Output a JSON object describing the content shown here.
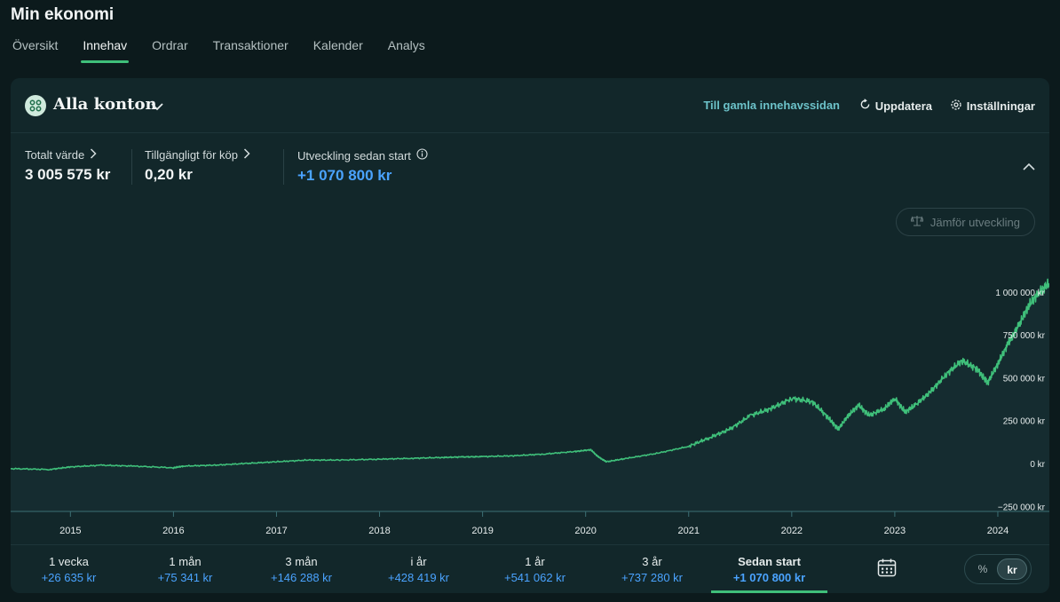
{
  "page": {
    "title": "Min ekonomi"
  },
  "nav": {
    "tabs": [
      {
        "label": "Översikt",
        "active": false
      },
      {
        "label": "Innehav",
        "active": true
      },
      {
        "label": "Ordrar",
        "active": false
      },
      {
        "label": "Transaktioner",
        "active": false
      },
      {
        "label": "Kalender",
        "active": false
      },
      {
        "label": "Analys",
        "active": false
      }
    ]
  },
  "header": {
    "account_title": "Alla konton",
    "old_page_link": "Till gamla innehavssidan",
    "update_label": "Uppdatera",
    "settings_label": "Inställningar"
  },
  "stats": {
    "total": {
      "label": "Totalt värde",
      "value": "3 005 575 kr"
    },
    "available": {
      "label": "Tillgängligt för köp",
      "value": "0,20 kr"
    },
    "development": {
      "label": "Utveckling sedan start",
      "value": "+1 070 800 kr"
    }
  },
  "compare_label": "Jämför utveckling",
  "colors": {
    "line": "#3fbf7a",
    "positive": "#4aa3ff",
    "accent": "#3fbf7a"
  },
  "chart_data": {
    "type": "line",
    "y_tick_labels": [
      "1 000 000 kr",
      "750 000 kr",
      "500 000 kr",
      "250 000 kr",
      "0 kr",
      "−250 000 kr"
    ],
    "y_ticks": [
      1000000,
      750000,
      500000,
      250000,
      0,
      -250000
    ],
    "x_tick_labels": [
      "2015",
      "2016",
      "2017",
      "2018",
      "2019",
      "2020",
      "2021",
      "2022",
      "2023",
      "2024"
    ],
    "x_ticks": [
      2015,
      2016,
      2017,
      2018,
      2019,
      2020,
      2021,
      2022,
      2023,
      2024
    ],
    "ylim": [
      -250000,
      1000000
    ],
    "xlim": [
      2014.42,
      2024.5
    ],
    "series": [
      {
        "x": [
          2014.42,
          2014.8,
          2015.0,
          2015.3,
          2015.6,
          2016.0,
          2016.1,
          2016.4,
          2016.7,
          2017.0,
          2017.3,
          2017.6,
          2018.0,
          2018.3,
          2018.6,
          2018.8,
          2019.0,
          2019.3,
          2019.6,
          2019.9,
          2020.05,
          2020.12,
          2020.2,
          2020.4,
          2020.7,
          2021.0,
          2021.2,
          2021.4,
          2021.6,
          2021.8,
          2022.0,
          2022.2,
          2022.35,
          2022.45,
          2022.55,
          2022.65,
          2022.75,
          2022.9,
          2023.0,
          2023.1,
          2023.2,
          2023.35,
          2023.5,
          2023.65,
          2023.8,
          2023.9,
          2024.0,
          2024.1,
          2024.2,
          2024.3,
          2024.4,
          2024.5
        ],
        "y": [
          -30000,
          -35000,
          -20000,
          -10000,
          -15000,
          -25000,
          -15000,
          -10000,
          0,
          10000,
          20000,
          20000,
          25000,
          30000,
          35000,
          38000,
          40000,
          45000,
          55000,
          70000,
          80000,
          40000,
          10000,
          30000,
          60000,
          100000,
          150000,
          200000,
          280000,
          320000,
          380000,
          360000,
          270000,
          200000,
          280000,
          340000,
          280000,
          320000,
          380000,
          300000,
          340000,
          420000,
          520000,
          600000,
          550000,
          470000,
          580000,
          700000,
          800000,
          920000,
          1000000,
          1050000
        ]
      }
    ]
  },
  "periods": [
    {
      "label": "1 vecka",
      "value": "+26 635 kr",
      "active": false
    },
    {
      "label": "1 mån",
      "value": "+75 341 kr",
      "active": false
    },
    {
      "label": "3 mån",
      "value": "+146 288 kr",
      "active": false
    },
    {
      "label": "i år",
      "value": "+428 419 kr",
      "active": false
    },
    {
      "label": "1 år",
      "value": "+541 062 kr",
      "active": false
    },
    {
      "label": "3 år",
      "value": "+737 280 kr",
      "active": false
    },
    {
      "label": "Sedan start",
      "value": "+1 070 800 kr",
      "active": true
    }
  ],
  "icons": {
    "account": "grid-icon",
    "chevron": "chevron-down-icon",
    "update": "refresh-icon",
    "settings": "gear-icon",
    "calendar": "calendar-icon",
    "compare": "scale-icon"
  },
  "unit_toggle": {
    "percent": "%",
    "currency": "kr",
    "selected": "kr"
  }
}
